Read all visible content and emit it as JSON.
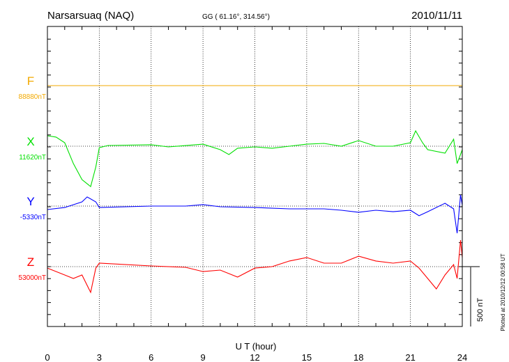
{
  "header": {
    "station": "Narsarsuaq (NAQ)",
    "coords": "GG ( 61.16°, 314.56°)",
    "date": "2010/11/11"
  },
  "footer": {
    "plotted": "Plotted at 2010/12/12 00:58 UT",
    "scale_label": "500 nT"
  },
  "chart_data": {
    "type": "line",
    "title": "Narsarsuaq (NAQ) 2010/11/11",
    "xlabel": "U T (hour)",
    "xlim": [
      0,
      24
    ],
    "xticks": [
      "0",
      "3",
      "6",
      "9",
      "12",
      "15",
      "18",
      "21",
      "24"
    ],
    "scale_nT": 500,
    "grid": "dotted verticals every 3 h; dotted baseline per component",
    "series": [
      {
        "name": "F",
        "baseline_label": "88880nT",
        "color": "#f2a900",
        "hours": [
          0,
          24
        ],
        "deviation_nT": [
          0,
          0
        ]
      },
      {
        "name": "X",
        "baseline_label": "11620nT",
        "color": "#00e000",
        "hours": [
          0,
          0.5,
          1,
          1.5,
          2,
          2.5,
          2.8,
          3,
          3.5,
          6,
          7,
          9,
          10,
          10.5,
          11,
          12,
          13,
          14,
          15,
          16,
          17,
          18,
          19,
          20,
          21,
          21.3,
          21.7,
          22,
          23,
          23.5,
          23.7,
          24
        ],
        "deviation_nT": [
          87,
          76,
          29,
          -145,
          -279,
          -337,
          -174,
          -12,
          6,
          12,
          -6,
          17,
          -29,
          -70,
          -17,
          -6,
          -17,
          0,
          17,
          23,
          0,
          47,
          0,
          0,
          29,
          128,
          29,
          -29,
          -58,
          58,
          -145,
          -29
        ]
      },
      {
        "name": "Y",
        "baseline_label": "-5330nT",
        "color": "#0000ff",
        "hours": [
          0,
          1,
          2,
          2.3,
          2.8,
          3,
          6,
          8,
          9,
          10,
          12,
          14,
          15,
          16,
          17,
          18,
          19,
          20,
          21,
          21.5,
          22,
          23,
          23.5,
          23.7,
          23.9,
          24
        ],
        "deviation_nT": [
          -29,
          -12,
          35,
          76,
          35,
          -12,
          0,
          0,
          12,
          -6,
          -12,
          -23,
          -23,
          -23,
          -35,
          -52,
          -35,
          -47,
          -35,
          -81,
          -47,
          23,
          -23,
          -227,
          93,
          6
        ]
      },
      {
        "name": "Z",
        "baseline_label": "53000nT",
        "color": "#ff0000",
        "hours": [
          0,
          1,
          1.5,
          2,
          2.5,
          2.8,
          3,
          6,
          8,
          9,
          10,
          11,
          12,
          13,
          14,
          15,
          16,
          17,
          18,
          19,
          20,
          21,
          21.5,
          22,
          22.5,
          23,
          23.5,
          23.7,
          23.9,
          24
        ],
        "deviation_nT": [
          -12,
          -70,
          -99,
          -70,
          -215,
          -12,
          29,
          6,
          -6,
          -41,
          -29,
          -87,
          -12,
          0,
          47,
          76,
          29,
          29,
          87,
          47,
          29,
          47,
          -12,
          -99,
          -186,
          -70,
          17,
          -99,
          221,
          76
        ]
      }
    ]
  }
}
